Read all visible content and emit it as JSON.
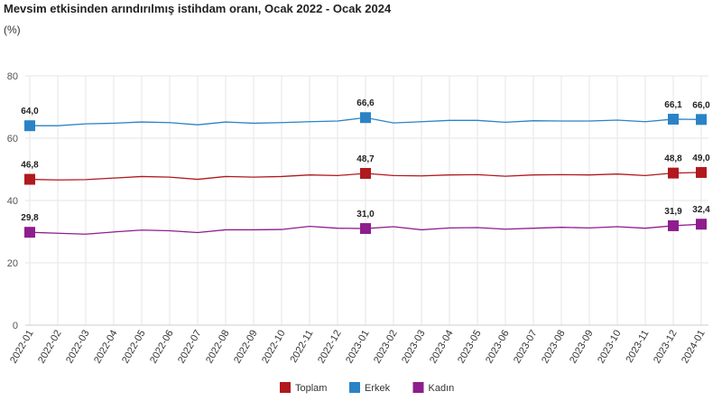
{
  "chart_data": {
    "type": "line",
    "title": "Mevsim etkisinden arındırılmış istihdam oranı, Ocak 2022 - Ocak 2024",
    "ylabel": "(%)",
    "ylim": [
      0,
      80
    ],
    "yticks": [
      0,
      20,
      40,
      60,
      80
    ],
    "grid": true,
    "legend_position": "bottom",
    "categories": [
      "2022-01",
      "2022-02",
      "2022-03",
      "2022-04",
      "2022-05",
      "2022-06",
      "2022-07",
      "2022-08",
      "2022-09",
      "2022-10",
      "2022-11",
      "2022-12",
      "2023-01",
      "2023-02",
      "2023-03",
      "2023-04",
      "2023-05",
      "2023-06",
      "2023-07",
      "2023-08",
      "2023-09",
      "2023-10",
      "2023-11",
      "2023-12",
      "2024-01"
    ],
    "labeled_indices": [
      0,
      12,
      23,
      24
    ],
    "series": [
      {
        "name": "Toplam",
        "color": "#b0191e",
        "values": [
          46.8,
          46.6,
          46.7,
          47.2,
          47.7,
          47.5,
          46.8,
          47.7,
          47.5,
          47.7,
          48.2,
          48.0,
          48.7,
          48.0,
          47.9,
          48.2,
          48.3,
          47.8,
          48.2,
          48.3,
          48.2,
          48.5,
          48.0,
          48.8,
          49.0
        ],
        "labels": [
          "46,8",
          "48,7",
          "48,8",
          "49,0"
        ]
      },
      {
        "name": "Erkek",
        "color": "#2a83c6",
        "values": [
          64.0,
          64.0,
          64.6,
          64.8,
          65.2,
          65.0,
          64.3,
          65.2,
          64.8,
          65.0,
          65.3,
          65.5,
          66.6,
          64.9,
          65.3,
          65.7,
          65.7,
          65.1,
          65.6,
          65.5,
          65.5,
          65.8,
          65.3,
          66.1,
          66.0
        ],
        "labels": [
          "64,0",
          "66,6",
          "66,1",
          "66,0"
        ]
      },
      {
        "name": "Kadın",
        "color": "#8e1d8e",
        "values": [
          29.8,
          29.5,
          29.2,
          29.9,
          30.5,
          30.3,
          29.7,
          30.6,
          30.6,
          30.7,
          31.7,
          31.1,
          31.0,
          31.6,
          30.6,
          31.2,
          31.3,
          30.8,
          31.1,
          31.4,
          31.2,
          31.6,
          31.1,
          31.9,
          32.4
        ],
        "labels": [
          "29,8",
          "31,0",
          "31,9",
          "32,4"
        ]
      }
    ]
  }
}
